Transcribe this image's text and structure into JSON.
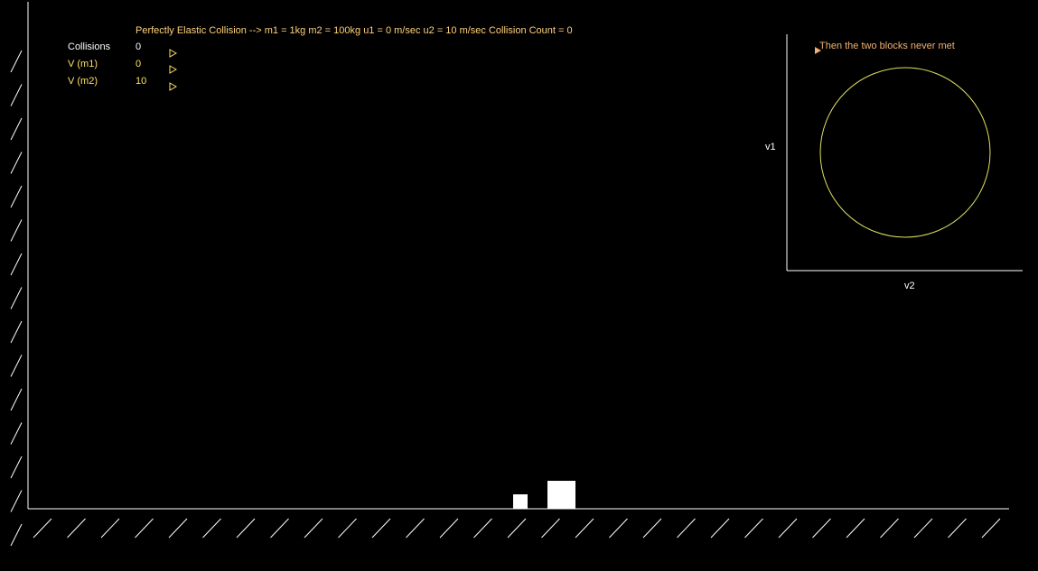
{
  "header": {
    "title": "Perfectly Elastic Collision --> m1 = 1kg  m2 = 100kg  u1 = 0 m/sec  u2 = 10 m/sec   Collision Count = 0"
  },
  "readouts": [
    {
      "label": "Collisions",
      "value": "0",
      "icon": "play-triangle-icon"
    },
    {
      "label": "V (m1)",
      "value": "0",
      "icon": "play-triangle-icon"
    },
    {
      "label": "V (m2)",
      "value": "10",
      "icon": "play-triangle-icon"
    }
  ],
  "phase_plot": {
    "caption": "Then the two blocks never met",
    "ylabel": "v1",
    "xlabel": "v2",
    "circle_color": "#e0e060",
    "marker_color": "#f0b070"
  },
  "colors": {
    "background": "#000000",
    "title": "#ffd27a",
    "readout_yellow": "#ffe066",
    "block": "#ffffff",
    "hatch": "#ffffff"
  }
}
